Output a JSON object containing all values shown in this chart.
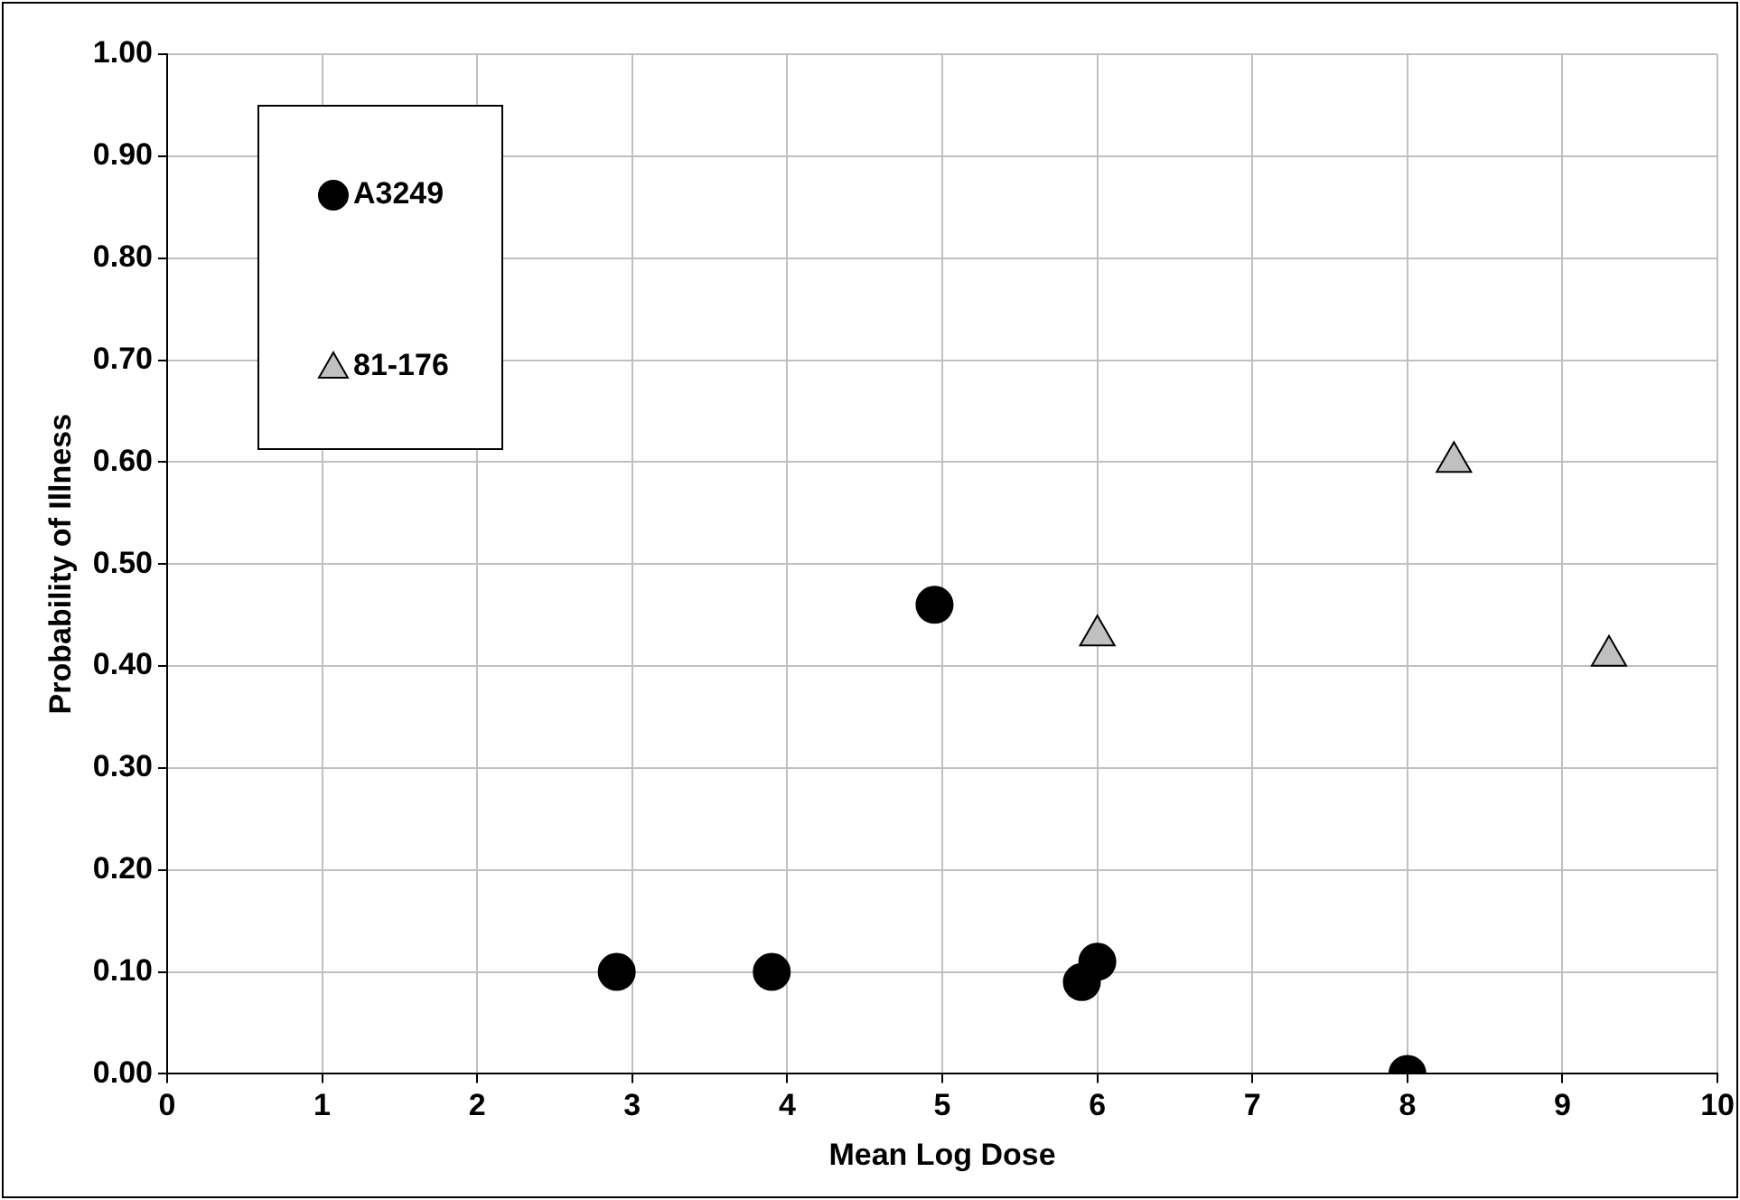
{
  "chart_data": {
    "type": "scatter",
    "xlabel": "Mean Log Dose",
    "ylabel": "Probability of Illness",
    "xlim": [
      0,
      10
    ],
    "xticks": [
      0,
      1,
      2,
      3,
      4,
      5,
      6,
      7,
      8,
      9,
      10
    ],
    "ylim": [
      0,
      1
    ],
    "yticks": [
      {
        "value": 0,
        "label": "0.00"
      },
      {
        "value": 0.1,
        "label": "0.10"
      },
      {
        "value": 0.2,
        "label": "0.20"
      },
      {
        "value": 0.3,
        "label": "0.30"
      },
      {
        "value": 0.4,
        "label": "0.40"
      },
      {
        "value": 0.5,
        "label": "0.50"
      },
      {
        "value": 0.6,
        "label": "0.60"
      },
      {
        "value": 0.7,
        "label": "0.70"
      },
      {
        "value": 0.8,
        "label": "0.80"
      },
      {
        "value": 0.9,
        "label": "0.90"
      },
      {
        "value": 1,
        "label": "1.00"
      }
    ],
    "grid": true,
    "legend": "top left",
    "series": [
      {
        "name": "A3249",
        "color": "#000000",
        "marker": "circle",
        "x": [
          2.9,
          3.9,
          4.95,
          5.9,
          6.0,
          8.0
        ],
        "values": [
          0.1,
          0.1,
          0.46,
          0.09,
          0.11,
          0.0
        ]
      },
      {
        "name": "81-176",
        "color": "#c0c0c0",
        "marker": "triangle",
        "x": [
          6.0,
          8.3,
          9.3
        ],
        "values": [
          0.43,
          0.6,
          0.41
        ]
      }
    ]
  }
}
